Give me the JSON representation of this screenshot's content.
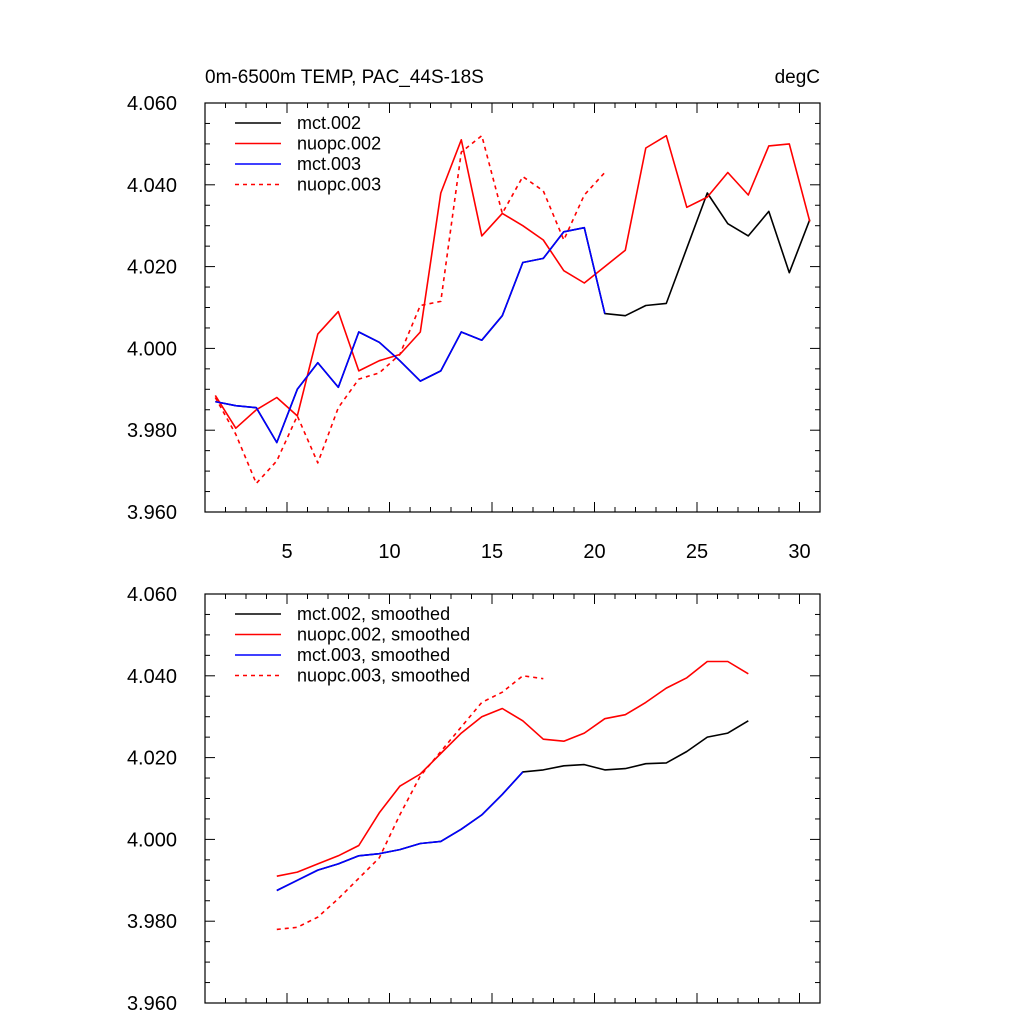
{
  "chart_data": [
    {
      "type": "line",
      "title": "0m-6500m TEMP, PAC_44S-18S",
      "units": "degC",
      "xlabel": "",
      "ylabel": "",
      "xlim": [
        1,
        31
      ],
      "ylim": [
        3.96,
        4.06
      ],
      "x_ticks": [
        5,
        10,
        15,
        20,
        25,
        30
      ],
      "y_ticks": [
        3.96,
        3.98,
        4.0,
        4.02,
        4.04,
        4.06
      ],
      "y_tick_labels": [
        "3.960",
        "3.980",
        "4.000",
        "4.020",
        "4.040",
        "4.060"
      ],
      "legend_position": "top-left",
      "series": [
        {
          "name": "mct.002",
          "color": "#000000",
          "dash": "solid",
          "x": [
            1.5,
            2.5,
            3.5,
            4.5,
            5.5,
            6.5,
            7.5,
            8.5,
            9.5,
            10.5,
            11.5,
            12.5,
            13.5,
            14.5,
            15.5,
            16.5,
            17.5,
            18.5,
            19.5,
            20.5,
            21.5,
            22.5,
            23.5,
            24.5,
            25.5,
            26.5,
            27.5,
            28.5,
            29.5,
            30.5
          ],
          "y": [
            3.987,
            3.986,
            3.9855,
            3.977,
            3.99,
            3.9965,
            3.9905,
            4.004,
            4.0015,
            3.997,
            3.992,
            3.9945,
            4.004,
            4.002,
            4.008,
            4.021,
            4.022,
            4.0285,
            4.0295,
            4.0085,
            4.008,
            4.0105,
            4.011,
            4.0245,
            4.038,
            4.0305,
            4.0275,
            4.0335,
            4.0185,
            4.0315
          ]
        },
        {
          "name": "nuopc.002",
          "color": "#ff0000",
          "dash": "solid",
          "x": [
            1.5,
            2.5,
            3.5,
            4.5,
            5.5,
            6.5,
            7.5,
            8.5,
            9.5,
            10.5,
            11.5,
            12.5,
            13.5,
            14.5,
            15.5,
            16.5,
            17.5,
            18.5,
            19.5,
            20.5,
            21.5,
            22.5,
            23.5,
            24.5,
            25.5,
            26.5,
            27.5,
            28.5,
            29.5,
            30.5
          ],
          "y": [
            3.9885,
            3.9805,
            3.985,
            3.988,
            3.9835,
            4.0035,
            4.009,
            3.9945,
            3.997,
            3.9985,
            4.004,
            4.038,
            4.051,
            4.0275,
            4.033,
            4.03,
            4.0265,
            4.019,
            4.016,
            4.02,
            4.024,
            4.049,
            4.052,
            4.0345,
            4.037,
            4.043,
            4.0375,
            4.0495,
            4.05,
            4.031
          ]
        },
        {
          "name": "mct.003",
          "color": "#0000ff",
          "dash": "solid",
          "x": [
            1.5,
            2.5,
            3.5,
            4.5,
            5.5,
            6.5,
            7.5,
            8.5,
            9.5,
            10.5,
            11.5,
            12.5,
            13.5,
            14.5,
            15.5,
            16.5,
            17.5,
            18.5,
            19.5,
            20.5
          ],
          "y": [
            3.987,
            3.986,
            3.9855,
            3.977,
            3.99,
            3.9965,
            3.9905,
            4.004,
            4.0015,
            3.997,
            3.992,
            3.9945,
            4.004,
            4.002,
            4.008,
            4.021,
            4.022,
            4.0285,
            4.0295,
            4.0085
          ]
        },
        {
          "name": "nuopc.003",
          "color": "#ff0000",
          "dash": "dashed",
          "x": [
            1.5,
            2.5,
            3.5,
            4.5,
            5.5,
            6.5,
            7.5,
            8.5,
            9.5,
            10.5,
            11.5,
            12.5,
            13.5,
            14.5,
            15.5,
            16.5,
            17.5,
            18.5,
            19.5,
            20.5
          ],
          "y": [
            3.988,
            3.979,
            3.967,
            3.9725,
            3.9835,
            3.972,
            3.9855,
            3.9925,
            3.994,
            3.9985,
            4.0105,
            4.0115,
            4.048,
            4.052,
            4.033,
            4.042,
            4.0385,
            4.0265,
            4.0375,
            4.043
          ]
        }
      ]
    },
    {
      "type": "line",
      "title": "",
      "xlabel": "",
      "ylabel": "",
      "xlim": [
        1,
        31
      ],
      "ylim": [
        3.96,
        4.06
      ],
      "x_ticks": [
        5,
        10,
        15,
        20,
        25,
        30
      ],
      "y_ticks": [
        3.96,
        3.98,
        4.0,
        4.02,
        4.04,
        4.06
      ],
      "y_tick_labels": [
        "3.960",
        "3.980",
        "4.000",
        "4.020",
        "4.040",
        "4.060"
      ],
      "legend_position": "top-left",
      "series": [
        {
          "name": "mct.002, smoothed",
          "color": "#000000",
          "dash": "solid",
          "x": [
            4.5,
            5.5,
            6.5,
            7.5,
            8.5,
            9.5,
            10.5,
            11.5,
            12.5,
            13.5,
            14.5,
            15.5,
            16.5,
            17.5,
            18.5,
            19.5,
            20.5,
            21.5,
            22.5,
            23.5,
            24.5,
            25.5,
            26.5,
            27.5
          ],
          "y": [
            3.9875,
            3.99,
            3.9925,
            3.994,
            3.996,
            3.9965,
            3.9975,
            3.999,
            3.9995,
            4.0025,
            4.006,
            4.011,
            4.0165,
            4.017,
            4.018,
            4.0183,
            4.017,
            4.0173,
            4.0185,
            4.0187,
            4.0215,
            4.025,
            4.026,
            4.029
          ]
        },
        {
          "name": "nuopc.002, smoothed",
          "color": "#ff0000",
          "dash": "solid",
          "x": [
            4.5,
            5.5,
            6.5,
            7.5,
            8.5,
            9.5,
            10.5,
            11.5,
            12.5,
            13.5,
            14.5,
            15.5,
            16.5,
            17.5,
            18.5,
            19.5,
            20.5,
            21.5,
            22.5,
            23.5,
            24.5,
            25.5,
            26.5,
            27.5
          ],
          "y": [
            3.991,
            3.992,
            3.994,
            3.996,
            3.9985,
            4.0065,
            4.013,
            4.016,
            4.021,
            4.026,
            4.03,
            4.032,
            4.029,
            4.0245,
            4.024,
            4.026,
            4.0295,
            4.0305,
            4.0335,
            4.037,
            4.0395,
            4.0435,
            4.0435,
            4.0405
          ]
        },
        {
          "name": "mct.003, smoothed",
          "color": "#0000ff",
          "dash": "solid",
          "x": [
            4.5,
            5.5,
            6.5,
            7.5,
            8.5,
            9.5,
            10.5,
            11.5,
            12.5,
            13.5,
            14.5,
            15.5,
            16.5
          ],
          "y": [
            3.9875,
            3.99,
            3.9925,
            3.994,
            3.996,
            3.9965,
            3.9975,
            3.999,
            3.9995,
            4.0025,
            4.006,
            4.011,
            4.0165
          ]
        },
        {
          "name": "nuopc.003, smoothed",
          "color": "#ff0000",
          "dash": "dashed",
          "x": [
            4.5,
            5.5,
            6.5,
            7.5,
            8.5,
            9.5,
            10.5,
            11.5,
            12.5,
            13.5,
            14.5,
            15.5,
            16.5,
            17.5
          ],
          "y": [
            3.978,
            3.9785,
            3.981,
            3.9855,
            3.9905,
            3.9955,
            4.006,
            4.0155,
            4.0215,
            4.0275,
            4.0335,
            4.036,
            4.04,
            4.0393
          ]
        }
      ]
    }
  ]
}
